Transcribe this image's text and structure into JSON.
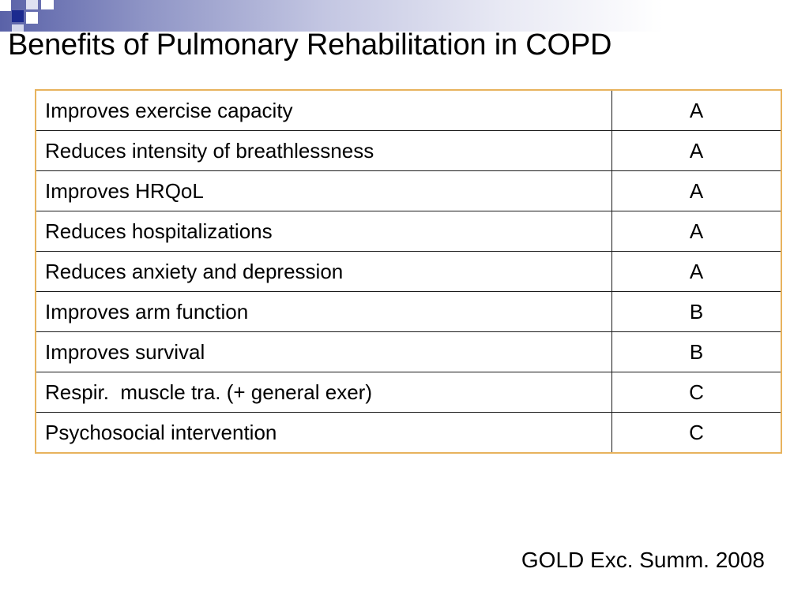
{
  "slide": {
    "title": "Benefits of Pulmonary Rehabilitation in COPD",
    "citation": "GOLD Exc. Summ. 2008"
  },
  "table": {
    "rows": [
      {
        "benefit": "Improves exercise capacity",
        "grade": "A"
      },
      {
        "benefit": "Reduces intensity of breathlessness",
        "grade": "A"
      },
      {
        "benefit": "Improves HRQoL",
        "grade": "A"
      },
      {
        "benefit": "Reduces hospitalizations",
        "grade": "A"
      },
      {
        "benefit": "Reduces anxiety and depression",
        "grade": "A"
      },
      {
        "benefit": "Improves arm function",
        "grade": "B"
      },
      {
        "benefit": "Improves survival",
        "grade": "B"
      },
      {
        "benefit": "Respir.  muscle tra. (+ general exer)",
        "grade": "C"
      },
      {
        "benefit": "Psychosocial intervention",
        "grade": "C"
      }
    ]
  },
  "colors": {
    "table_border": "#e8b35d",
    "header_accent": "#1c2a8f"
  }
}
